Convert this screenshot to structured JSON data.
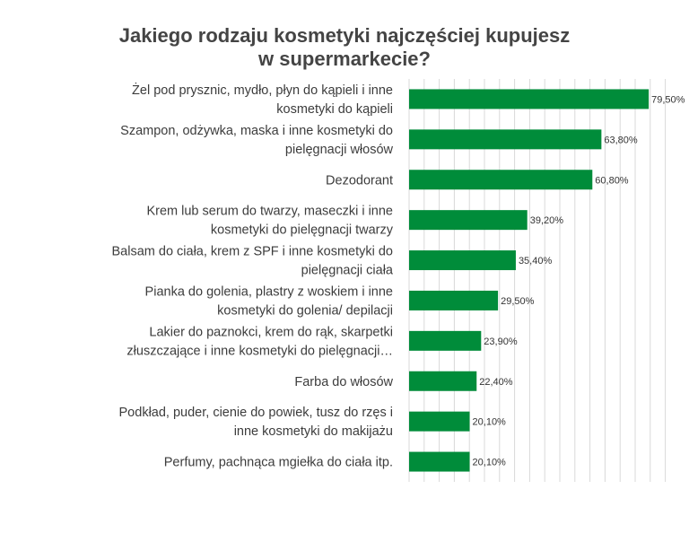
{
  "chart_data": {
    "type": "bar",
    "orientation": "horizontal",
    "title": "Jakiego rodzaju kosmetyki najczęściej kupujesz w supermarkecie?",
    "title_lines": [
      "Jakiego rodzaju kosmetyki najczęściej kupujesz",
      "w supermarkecie?"
    ],
    "categories": [
      [
        "Żel pod prysznic, mydło, płyn do kąpieli i inne",
        "kosmetyki do kąpieli"
      ],
      [
        "Szampon, odżywka, maska i inne kosmetyki do",
        "pielęgnacji włosów"
      ],
      [
        "Dezodorant"
      ],
      [
        "Krem lub serum do twarzy, maseczki i inne",
        "kosmetyki do pielęgnacji twarzy"
      ],
      [
        "Balsam do ciała, krem z SPF i inne kosmetyki do",
        "pielęgnacji ciała"
      ],
      [
        "Pianka do golenia, plastry z woskiem i inne",
        "kosmetyki do golenia/ depilacji"
      ],
      [
        "Lakier do paznokci, krem do rąk, skarpetki",
        "złuszczające i inne kosmetyki do pielęgnacji…"
      ],
      [
        "Farba do włosów"
      ],
      [
        "Podkład, puder, cienie do powiek, tusz do rzęs i",
        "inne kosmetyki do makijażu"
      ],
      [
        "Perfumy, pachnąca mgiełka do ciała itp."
      ]
    ],
    "values": [
      79.5,
      63.8,
      60.8,
      39.2,
      35.4,
      29.5,
      23.9,
      22.4,
      20.1,
      20.1
    ],
    "value_labels": [
      "79,50%",
      "63,80%",
      "60,80%",
      "39,20%",
      "35,40%",
      "29,50%",
      "23,90%",
      "22,40%",
      "20,10%",
      "20,10%"
    ],
    "xlim": [
      0,
      85
    ],
    "xgrid_step": 5,
    "grid": true,
    "legend": "none",
    "bar_color": "#008c3a"
  }
}
